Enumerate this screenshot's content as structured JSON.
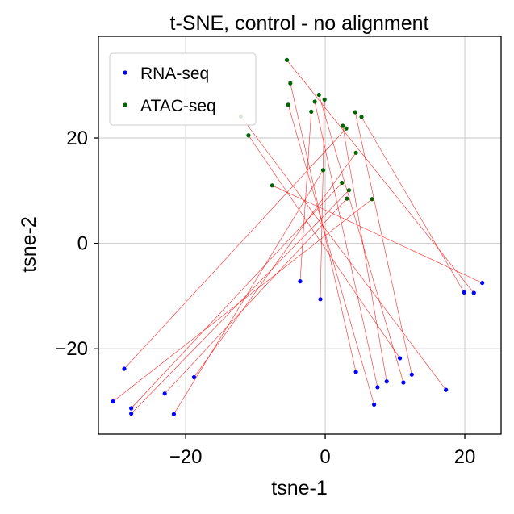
{
  "chart_data": {
    "type": "scatter",
    "title": "t-SNE, control - no alignment",
    "xlabel": "tsne-1",
    "ylabel": "tsne-2",
    "xlim": [
      -32.5,
      25.2
    ],
    "ylim": [
      -36.2,
      39.3
    ],
    "xticks": [
      -20,
      0,
      20
    ],
    "yticks": [
      -20,
      0,
      20
    ],
    "xtick_labels": [
      "−20",
      "0",
      "20"
    ],
    "ytick_labels": [
      "−20",
      "0",
      "20"
    ],
    "grid": true,
    "legend_position": "top-left",
    "series": [
      {
        "name": "RNA-seq",
        "color": "#0000ff",
        "points": [
          [
            -28.8,
            -23.8
          ],
          [
            -30.4,
            -30.0
          ],
          [
            -27.8,
            -31.3
          ],
          [
            -27.8,
            -32.3
          ],
          [
            -23.0,
            -28.5
          ],
          [
            -21.7,
            -32.4
          ],
          [
            -18.8,
            -25.4
          ],
          [
            -3.6,
            -7.2
          ],
          [
            -0.7,
            -10.6
          ],
          [
            4.4,
            -24.4
          ],
          [
            7.5,
            -27.3
          ],
          [
            7.0,
            -30.6
          ],
          [
            8.8,
            -26.2
          ],
          [
            10.7,
            -21.8
          ],
          [
            11.2,
            -26.4
          ],
          [
            12.4,
            -24.9
          ],
          [
            17.3,
            -27.8
          ],
          [
            19.9,
            -9.3
          ],
          [
            21.3,
            -9.4
          ],
          [
            22.5,
            -7.5
          ]
        ]
      },
      {
        "name": "ATAC-seq",
        "color": "#006400",
        "points": [
          [
            -5.5,
            34.8
          ],
          [
            -5.0,
            30.4
          ],
          [
            -5.3,
            26.3
          ],
          [
            -1.5,
            26.9
          ],
          [
            -2.0,
            25.0
          ],
          [
            -0.9,
            28.2
          ],
          [
            -0.1,
            27.3
          ],
          [
            -12.1,
            24.1
          ],
          [
            -11.0,
            20.5
          ],
          [
            -7.6,
            11.0
          ],
          [
            -0.3,
            13.9
          ],
          [
            2.5,
            22.3
          ],
          [
            3.0,
            21.8
          ],
          [
            4.3,
            24.9
          ],
          [
            5.2,
            24.0
          ],
          [
            4.4,
            17.2
          ],
          [
            2.4,
            11.5
          ],
          [
            3.4,
            10.1
          ],
          [
            3.1,
            8.5
          ],
          [
            6.7,
            8.4
          ]
        ]
      }
    ],
    "line_color": "#ff0000",
    "links": [
      [
        0,
        12
      ],
      [
        1,
        19
      ],
      [
        2,
        16
      ],
      [
        3,
        17
      ],
      [
        4,
        18
      ],
      [
        5,
        10
      ],
      [
        6,
        15
      ],
      [
        7,
        4
      ],
      [
        8,
        6
      ],
      [
        9,
        1
      ],
      [
        10,
        3
      ],
      [
        11,
        2
      ],
      [
        12,
        11
      ],
      [
        13,
        8
      ],
      [
        14,
        5
      ],
      [
        15,
        13
      ],
      [
        16,
        7
      ],
      [
        17,
        14
      ],
      [
        18,
        0
      ],
      [
        19,
        9
      ]
    ]
  }
}
